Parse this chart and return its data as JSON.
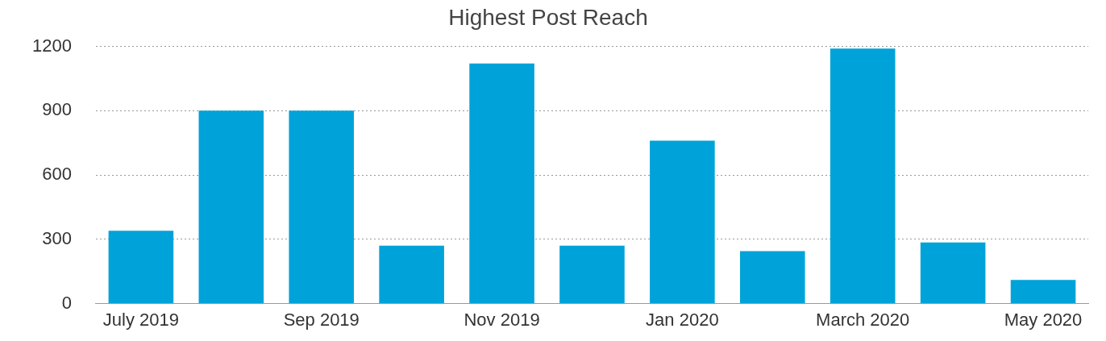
{
  "chart_data": {
    "type": "bar",
    "title": "Highest Post Reach",
    "categories": [
      "July 2019",
      null,
      "Sep 2019",
      null,
      "Nov 2019",
      null,
      "Jan 2020",
      null,
      "March 2020",
      null,
      "May 2020"
    ],
    "values": [
      340,
      900,
      900,
      270,
      1120,
      270,
      760,
      245,
      1190,
      285,
      110
    ],
    "color": "#00a3d9",
    "ylim": [
      0,
      1200
    ],
    "yticks": [
      0,
      300,
      600,
      900,
      1200
    ],
    "grid": "y",
    "legend": false
  }
}
